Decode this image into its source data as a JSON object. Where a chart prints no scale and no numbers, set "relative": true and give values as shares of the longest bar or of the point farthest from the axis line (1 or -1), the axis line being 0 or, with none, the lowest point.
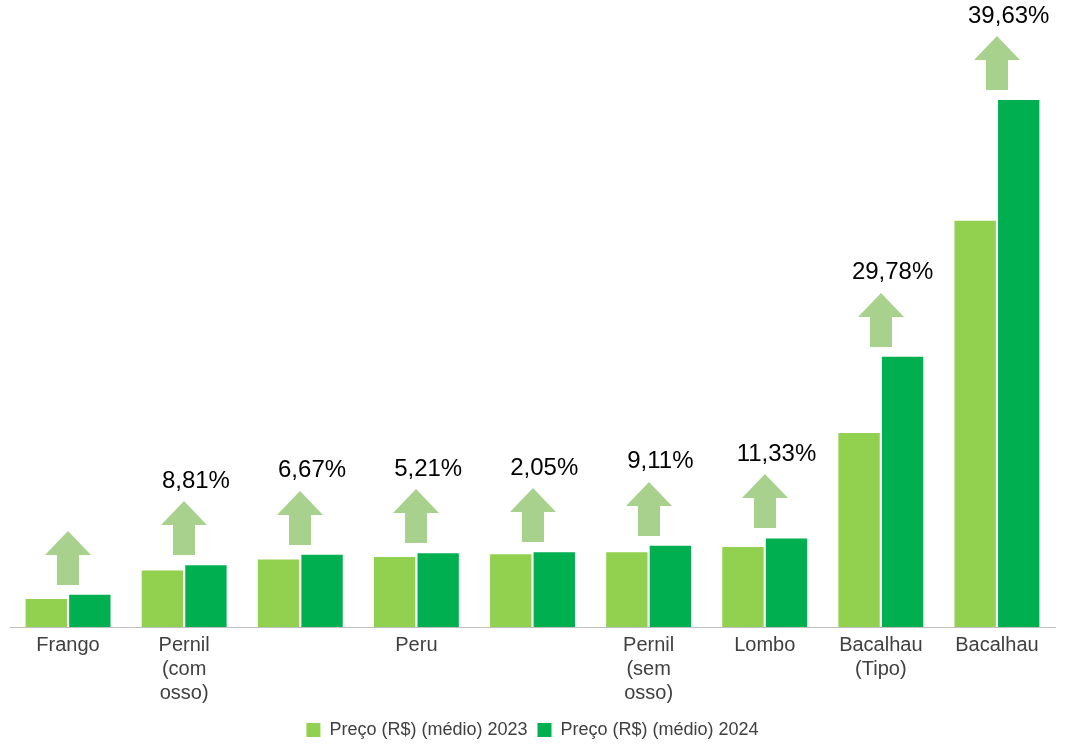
{
  "chart_data": {
    "type": "bar",
    "relative": true,
    "legend": "bottom",
    "categories": [
      "Frango",
      "Pernil (com osso)",
      null,
      "Peru",
      null,
      "Pernil (sem osso)",
      "Lombo",
      "Bacalhau (Tipo)",
      "Bacalhau"
    ],
    "series": [
      {
        "name": "Preço (R$) (médio) 2023",
        "color": "#92d050",
        "values": [
          0.053,
          0.107,
          0.128,
          0.133,
          0.138,
          0.142,
          0.152,
          0.368,
          0.771
        ]
      },
      {
        "name": "Preço (R$) (médio) 2024",
        "color": "#00b050",
        "values": [
          0.061,
          0.117,
          0.137,
          0.14,
          0.142,
          0.154,
          0.168,
          0.513,
          1
        ]
      }
    ],
    "annotations": [
      "8,81%",
      "6,67%",
      "5,21%",
      "2,05%",
      "9,11%",
      "11,33%",
      "29,78%",
      "39,63%"
    ]
  }
}
